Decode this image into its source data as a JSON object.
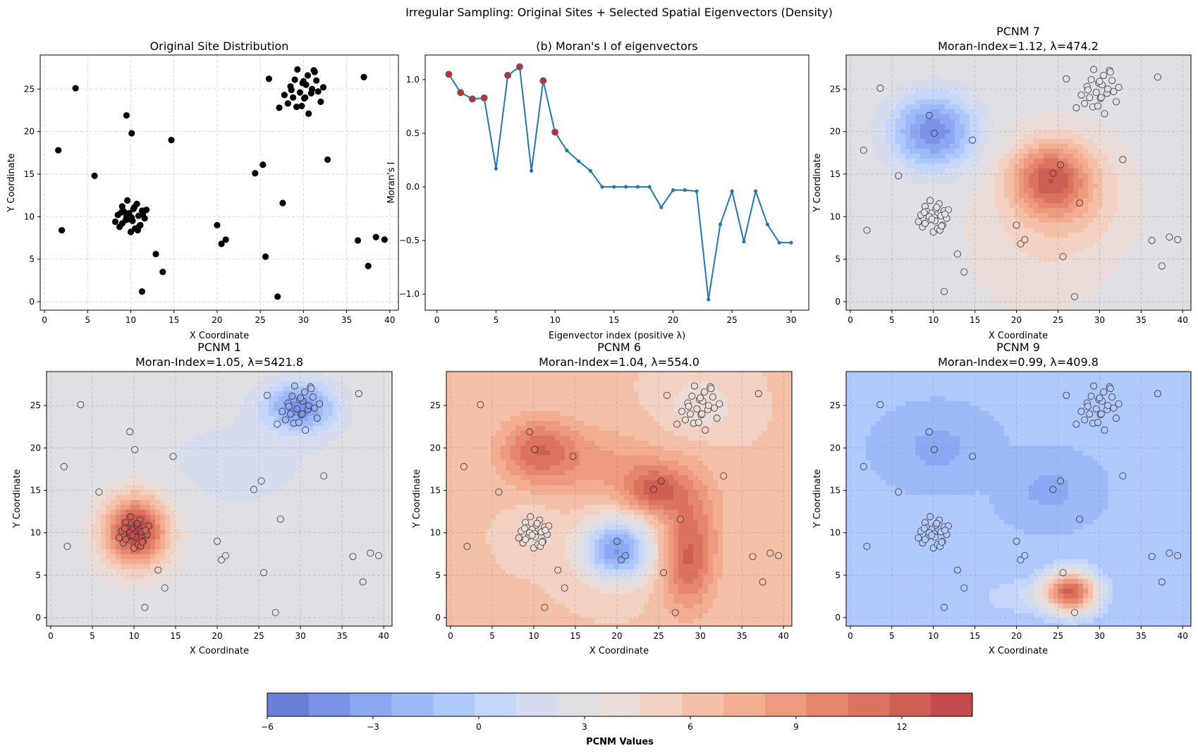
{
  "figure": {
    "suptitle": "Irregular Sampling: Original Sites + Selected Spatial Eigenvectors (Density)"
  },
  "colorbar": {
    "label": "PCNM Values",
    "vmin": -6,
    "vmax": 14,
    "ticks": [
      -6,
      -3,
      0,
      3,
      6,
      9,
      12
    ],
    "colors": [
      "#6a7fd8",
      "#7b93e6",
      "#8ca8f2",
      "#9dbaf8",
      "#b0c9fc",
      "#c4d6fa",
      "#d5dcee",
      "#e0e0e4",
      "#eadcd6",
      "#f2d1c3",
      "#f5c0a8",
      "#f3ad91",
      "#ee9a7e",
      "#e6876d",
      "#dc735f",
      "#cf5e53",
      "#c34a4d"
    ]
  },
  "sites": {
    "x": [
      1.6,
      2.0,
      3.6,
      5.8,
      9.5,
      10.1,
      14.7,
      11.3,
      12.9,
      13.7,
      20.0,
      20.5,
      21.0,
      24.4,
      25.3,
      25.6,
      26.0,
      27.0,
      27.6,
      32.8,
      36.3,
      37.0,
      37.5,
      38.4,
      39.4,
      8.2,
      8.5,
      8.7,
      9.0,
      9.2,
      9.4,
      9.6,
      9.8,
      10.0,
      10.1,
      10.3,
      10.5,
      10.7,
      10.9,
      11.1,
      11.3,
      11.6,
      11.8,
      9.0,
      10.2,
      10.8,
      9.5,
      10.4,
      11.0,
      9.8,
      8.9,
      11.4,
      27.2,
      27.8,
      28.2,
      28.5,
      28.8,
      29.0,
      29.3,
      29.6,
      29.9,
      30.1,
      30.3,
      30.6,
      30.9,
      31.2,
      31.5,
      32.0,
      32.3,
      29.2,
      30.5,
      28.6,
      31.0,
      29.8,
      30.2,
      31.7,
      30.0,
      31.3
    ],
    "y": [
      17.8,
      8.4,
      25.1,
      14.8,
      21.9,
      19.8,
      19.0,
      1.2,
      5.6,
      3.5,
      9.0,
      6.8,
      7.3,
      15.1,
      16.1,
      5.3,
      26.2,
      0.6,
      11.6,
      16.7,
      7.2,
      26.4,
      4.2,
      7.6,
      7.3,
      9.4,
      10.2,
      8.8,
      11.2,
      10.6,
      9.6,
      11.9,
      10.4,
      8.2,
      9.9,
      10.9,
      8.6,
      11.5,
      10.1,
      9.0,
      10.7,
      9.8,
      10.8,
      9.2,
      9.5,
      8.4,
      10.0,
      11.1,
      8.9,
      9.7,
      10.5,
      10.3,
      22.8,
      24.3,
      23.3,
      25.3,
      24.0,
      26.1,
      27.3,
      24.6,
      25.7,
      23.9,
      25.5,
      22.1,
      24.5,
      27.2,
      26.0,
      23.5,
      25.2,
      22.9,
      26.6,
      24.9,
      25.0,
      23.0,
      24.0,
      24.7,
      25.9,
      27.0
    ]
  },
  "panels": [
    {
      "id": "sites",
      "title": "Original Site Distribution",
      "xlabel": "X Coordinate",
      "ylabel": "Y Coordinate",
      "xticks": [
        "0",
        "5",
        "10",
        "15",
        "20",
        "25",
        "30",
        "35",
        "40"
      ],
      "yticks": [
        "0",
        "5",
        "10",
        "15",
        "20",
        "25"
      ]
    },
    {
      "id": "moran",
      "title": "(b) Moran's I of eigenvectors",
      "xlabel": "Eigenvector index (positive λ)",
      "ylabel": "Moran's I",
      "xticks": [
        "0",
        "5",
        "10",
        "15",
        "20",
        "25",
        "30"
      ],
      "yticks": [
        "−1.0",
        "−0.5",
        "0.0",
        "0.5",
        "1.0"
      ]
    },
    {
      "id": "pcnm7",
      "title": "PCNM 7",
      "subtitle": "Moran-Index=1.12, λ=474.2",
      "xlabel": "X Coordinate",
      "ylabel": "Y Coordinate",
      "xticks": [
        "0",
        "5",
        "10",
        "15",
        "20",
        "25",
        "30",
        "35",
        "40"
      ],
      "yticks": [
        "0",
        "5",
        "10",
        "15",
        "20",
        "25"
      ]
    },
    {
      "id": "pcnm1",
      "title": "PCNM 1",
      "subtitle": "Moran-Index=1.05, λ=5421.8",
      "xlabel": "X Coordinate",
      "ylabel": "Y Coordinate",
      "xticks": [
        "0",
        "5",
        "10",
        "15",
        "20",
        "25",
        "30",
        "35",
        "40"
      ],
      "yticks": [
        "0",
        "5",
        "10",
        "15",
        "20",
        "25"
      ]
    },
    {
      "id": "pcnm6",
      "title": "PCNM 6",
      "subtitle": "Moran-Index=1.04, λ=554.0",
      "xlabel": "X Coordinate",
      "ylabel": "Y Coordinate",
      "xticks": [
        "0",
        "5",
        "10",
        "15",
        "20",
        "25",
        "30",
        "35",
        "40"
      ],
      "yticks": [
        "0",
        "5",
        "10",
        "15",
        "20",
        "25"
      ]
    },
    {
      "id": "pcnm9",
      "title": "PCNM 9",
      "subtitle": "Moran-Index=0.99, λ=409.8",
      "xlabel": "X Coordinate",
      "ylabel": "Y Coordinate",
      "xticks": [
        "0",
        "5",
        "10",
        "15",
        "20",
        "25",
        "30",
        "35",
        "40"
      ],
      "yticks": [
        "0",
        "5",
        "10",
        "15",
        "20",
        "25"
      ]
    }
  ],
  "chart_data": [
    {
      "type": "scatter",
      "title": "Original Site Distribution",
      "xlabel": "X Coordinate",
      "ylabel": "Y Coordinate",
      "xlim": [
        -0.5,
        41
      ],
      "ylim": [
        -1,
        29
      ],
      "grid": true,
      "point_color": "#000000"
    },
    {
      "type": "line",
      "title": "(b) Moran's I of eigenvectors",
      "xlabel": "Eigenvector index (positive λ)",
      "ylabel": "Moran's I",
      "xlim": [
        -1,
        31.5
      ],
      "ylim": [
        -1.15,
        1.23
      ],
      "grid": false,
      "line_color": "#1f77b4",
      "highlight_color": "#d62728",
      "x": [
        1,
        2,
        3,
        4,
        5,
        6,
        7,
        8,
        9,
        10,
        11,
        12,
        13,
        14,
        15,
        16,
        17,
        18,
        19,
        20,
        21,
        22,
        23,
        24,
        25,
        26,
        27,
        28,
        29,
        30
      ],
      "y": [
        1.05,
        0.88,
        0.82,
        0.83,
        0.17,
        1.04,
        1.12,
        0.15,
        0.99,
        0.51,
        0.34,
        0.24,
        0.15,
        0.0,
        0.0,
        0.0,
        0.0,
        0.0,
        -0.19,
        -0.03,
        -0.03,
        -0.04,
        -1.05,
        -0.35,
        -0.04,
        -0.51,
        -0.04,
        -0.35,
        -0.52,
        -0.52
      ],
      "highlighted_x": [
        1,
        2,
        3,
        4,
        6,
        7,
        9,
        10
      ]
    },
    {
      "type": "heatmap",
      "title": "PCNM 7",
      "subtitle": "Moran-Index=1.12, λ=474.2",
      "xlim": [
        -0.5,
        41
      ],
      "ylim": [
        -1,
        29
      ],
      "background": 3.0,
      "bumps": [
        {
          "cx": 10.0,
          "cy": 20.0,
          "sx": 3.5,
          "sy": 3.0,
          "amp": -7.5
        },
        {
          "cx": 24.0,
          "cy": 14.5,
          "sx": 3.3,
          "sy": 3.0,
          "amp": 8.0
        },
        {
          "cx": 28.0,
          "cy": 12.0,
          "sx": 4.0,
          "sy": 4.5,
          "amp": 2.0
        },
        {
          "cx": 22.0,
          "cy": 8.0,
          "sx": 5.0,
          "sy": 6.0,
          "amp": 1.5
        }
      ]
    },
    {
      "type": "heatmap",
      "title": "PCNM 1",
      "subtitle": "Moran-Index=1.05, λ=5421.8",
      "xlim": [
        -0.5,
        41
      ],
      "ylim": [
        -1,
        29
      ],
      "background": 2.8,
      "bumps": [
        {
          "cx": 10.2,
          "cy": 10.2,
          "sx": 2.7,
          "sy": 2.9,
          "amp": 11.2
        },
        {
          "cx": 30.0,
          "cy": 24.8,
          "sx": 2.8,
          "sy": 1.9,
          "amp": -7.0
        },
        {
          "cx": 22.0,
          "cy": 18.0,
          "sx": 9.0,
          "sy": 5.0,
          "amp": -0.8
        }
      ]
    },
    {
      "type": "heatmap",
      "title": "PCNM 6",
      "subtitle": "Moran-Index=1.04, λ=554.0",
      "xlim": [
        -0.5,
        41
      ],
      "ylim": [
        -1,
        29
      ],
      "background": 5.8,
      "bumps": [
        {
          "cx": 20.0,
          "cy": 8.0,
          "sx": 3.0,
          "sy": 2.6,
          "amp": -9.5
        },
        {
          "cx": 10.5,
          "cy": 19.8,
          "sx": 3.2,
          "sy": 2.6,
          "amp": 5.0
        },
        {
          "cx": 24.5,
          "cy": 15.0,
          "sx": 2.6,
          "sy": 2.0,
          "amp": 5.5
        },
        {
          "cx": 28.5,
          "cy": 6.0,
          "sx": 2.2,
          "sy": 3.8,
          "amp": 5.0
        },
        {
          "cx": 18.0,
          "cy": 18.0,
          "sx": 6.0,
          "sy": 3.0,
          "amp": 2.5
        },
        {
          "cx": 29.0,
          "cy": 12.0,
          "sx": 2.5,
          "sy": 4.0,
          "amp": 3.0
        },
        {
          "cx": 30.0,
          "cy": 25.0,
          "sx": 3.0,
          "sy": 2.5,
          "amp": -2.2
        },
        {
          "cx": 10.0,
          "cy": 10.0,
          "sx": 2.0,
          "sy": 2.0,
          "amp": -1.8
        }
      ]
    },
    {
      "type": "heatmap",
      "title": "PCNM 9",
      "subtitle": "Moran-Index=0.99, λ=409.8",
      "xlim": [
        -0.5,
        41
      ],
      "ylim": [
        -1,
        29
      ],
      "background": -1.2,
      "bumps": [
        {
          "cx": 26.5,
          "cy": 3.0,
          "sx": 2.3,
          "sy": 1.8,
          "amp": 13.0
        },
        {
          "cx": 10.5,
          "cy": 20.0,
          "sx": 3.5,
          "sy": 2.4,
          "amp": -1.8
        },
        {
          "cx": 24.0,
          "cy": 15.0,
          "sx": 3.0,
          "sy": 2.2,
          "amp": -1.8
        },
        {
          "cx": 20.0,
          "cy": 2.5,
          "sx": 3.0,
          "sy": 1.5,
          "amp": 2.0
        }
      ]
    }
  ]
}
